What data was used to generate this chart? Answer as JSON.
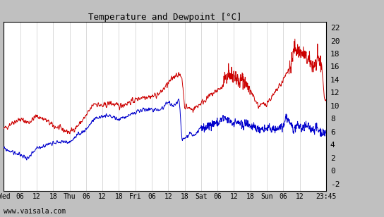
{
  "title": "Temperature and Dewpoint [°C]",
  "yticks": [
    -2,
    0,
    2,
    4,
    6,
    8,
    10,
    12,
    14,
    16,
    18,
    20,
    22
  ],
  "ylim": [
    -3,
    23
  ],
  "watermark": "www.vaisala.com",
  "bg_color": "#ffffff",
  "outer_bg": "#c0c0c0",
  "grid_color": "#cccccc",
  "temp_color": "#cc0000",
  "dewpoint_color": "#0000cc",
  "x_tick_labels": [
    "Wed",
    "06",
    "12",
    "18",
    "Thu",
    "06",
    "12",
    "18",
    "Fri",
    "06",
    "12",
    "18",
    "Sat",
    "06",
    "12",
    "18",
    "Sun",
    "06",
    "12",
    "23:45"
  ],
  "x_tick_positions": [
    0,
    6,
    12,
    18,
    24,
    30,
    36,
    42,
    48,
    54,
    60,
    66,
    72,
    78,
    84,
    90,
    96,
    102,
    108,
    117.75
  ],
  "x_total_hours": 117.75,
  "temp_keypoints": [
    [
      0,
      6.5
    ],
    [
      3,
      7.5
    ],
    [
      6,
      8.0
    ],
    [
      9,
      7.5
    ],
    [
      12,
      8.5
    ],
    [
      15,
      8.0
    ],
    [
      18,
      7.0
    ],
    [
      21,
      6.5
    ],
    [
      24,
      6.0
    ],
    [
      27,
      7.0
    ],
    [
      30,
      8.5
    ],
    [
      33,
      10.5
    ],
    [
      36,
      10.0
    ],
    [
      39,
      10.5
    ],
    [
      42,
      10.0
    ],
    [
      45,
      10.5
    ],
    [
      48,
      11.0
    ],
    [
      51,
      11.5
    ],
    [
      54,
      11.5
    ],
    [
      57,
      12.0
    ],
    [
      60,
      13.5
    ],
    [
      63,
      15.0
    ],
    [
      65,
      14.5
    ],
    [
      66,
      10.0
    ],
    [
      69,
      9.5
    ],
    [
      72,
      10.5
    ],
    [
      75,
      11.5
    ],
    [
      78,
      12.5
    ],
    [
      80,
      13.0
    ],
    [
      81,
      14.5
    ],
    [
      82,
      15.5
    ],
    [
      83,
      14.5
    ],
    [
      84,
      15.0
    ],
    [
      86,
      13.5
    ],
    [
      87,
      14.0
    ],
    [
      88,
      13.5
    ],
    [
      90,
      12.5
    ],
    [
      93,
      10.0
    ],
    [
      96,
      10.5
    ],
    [
      99,
      12.0
    ],
    [
      102,
      14.0
    ],
    [
      105,
      16.5
    ],
    [
      106,
      19.0
    ],
    [
      107,
      18.5
    ],
    [
      108,
      18.5
    ],
    [
      109,
      18.0
    ],
    [
      110,
      17.5
    ],
    [
      112,
      16.5
    ],
    [
      114,
      16.5
    ],
    [
      115,
      17.0
    ],
    [
      116,
      16.5
    ],
    [
      117,
      11.5
    ],
    [
      117.75,
      10.5
    ]
  ],
  "dew_keypoints": [
    [
      0,
      3.5
    ],
    [
      3,
      3.0
    ],
    [
      6,
      2.5
    ],
    [
      9,
      2.0
    ],
    [
      12,
      3.5
    ],
    [
      15,
      4.0
    ],
    [
      18,
      4.5
    ],
    [
      21,
      4.5
    ],
    [
      24,
      4.5
    ],
    [
      27,
      5.5
    ],
    [
      30,
      6.5
    ],
    [
      33,
      8.0
    ],
    [
      36,
      8.5
    ],
    [
      39,
      8.5
    ],
    [
      42,
      8.0
    ],
    [
      45,
      8.5
    ],
    [
      48,
      9.0
    ],
    [
      51,
      9.5
    ],
    [
      54,
      9.5
    ],
    [
      57,
      9.5
    ],
    [
      60,
      10.5
    ],
    [
      62,
      10.0
    ],
    [
      64,
      11.0
    ],
    [
      65,
      5.0
    ],
    [
      66,
      5.0
    ],
    [
      68,
      6.0
    ],
    [
      69,
      5.5
    ],
    [
      72,
      6.5
    ],
    [
      75,
      7.0
    ],
    [
      78,
      7.5
    ],
    [
      80,
      8.0
    ],
    [
      82,
      8.0
    ],
    [
      83,
      7.5
    ],
    [
      84,
      7.5
    ],
    [
      86,
      7.5
    ],
    [
      87,
      7.0
    ],
    [
      88,
      7.5
    ],
    [
      90,
      7.0
    ],
    [
      93,
      6.5
    ],
    [
      96,
      6.5
    ],
    [
      99,
      6.5
    ],
    [
      102,
      7.0
    ],
    [
      103,
      8.5
    ],
    [
      105,
      7.0
    ],
    [
      106,
      6.5
    ],
    [
      107,
      7.0
    ],
    [
      108,
      7.0
    ],
    [
      109,
      6.5
    ],
    [
      110,
      7.0
    ],
    [
      112,
      6.5
    ],
    [
      114,
      6.5
    ],
    [
      115,
      6.5
    ],
    [
      116,
      6.0
    ],
    [
      117,
      6.0
    ],
    [
      117.75,
      6.0
    ]
  ]
}
